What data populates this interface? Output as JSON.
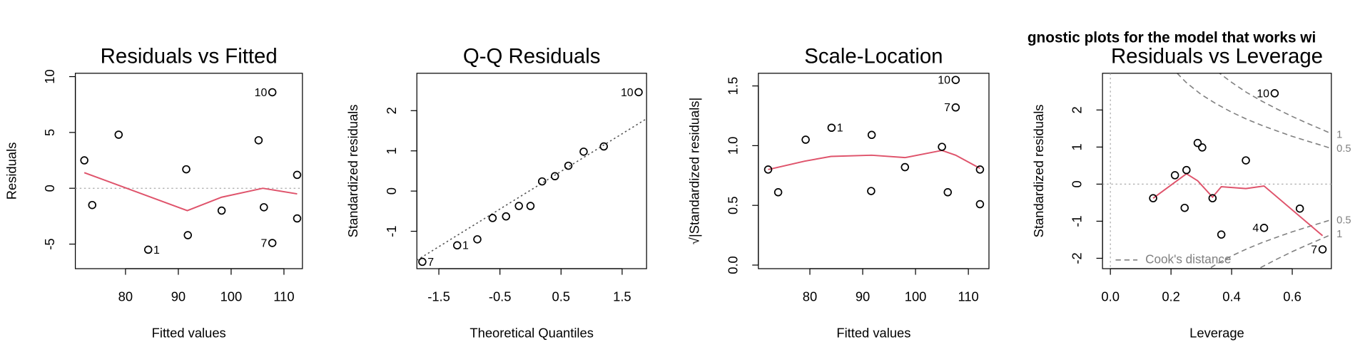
{
  "title": "gnostic plots for the model that works wi",
  "chart_data": [
    {
      "type": "scatter",
      "title": "Residuals vs Fitted",
      "xlabel": "Fitted values",
      "ylabel": "Residuals",
      "xlim": [
        70.5,
        113.5
      ],
      "ylim": [
        -7.2,
        10.3
      ],
      "xticks": [
        80,
        90,
        100,
        110
      ],
      "yticks": [
        -5,
        0,
        5,
        10
      ],
      "x": [
        72.2,
        73.7,
        78.7,
        84.3,
        91.5,
        91.8,
        98.2,
        105.2,
        106.2,
        107.8,
        107.8,
        112.5,
        112.5
      ],
      "values": [
        2.5,
        -1.5,
        4.8,
        -5.5,
        1.7,
        -4.2,
        -2.0,
        4.3,
        -1.7,
        8.6,
        -4.9,
        1.2,
        -2.7
      ],
      "point_labels": [
        null,
        null,
        null,
        "1",
        null,
        null,
        null,
        null,
        null,
        "10",
        "7",
        null,
        null
      ],
      "smooth": {
        "color": "#DF536B",
        "x": [
          72.2,
          91.7,
          98.2,
          106,
          112.5
        ],
        "values": [
          1.4,
          -2.0,
          -0.8,
          0,
          -0.5
        ]
      },
      "hline": 0
    },
    {
      "type": "scatter",
      "title": "Q-Q Residuals",
      "xlabel": "Theoretical Quantiles",
      "ylabel": "Standardized residuals",
      "xlim": [
        -1.86,
        1.9
      ],
      "ylim": [
        -1.93,
        2.93
      ],
      "xticks": [
        -1.5,
        -0.5,
        0.5,
        1.5
      ],
      "yticks": [
        -1,
        0,
        1,
        2
      ],
      "x": [
        -1.77,
        -1.2,
        -0.87,
        -0.62,
        -0.4,
        -0.19,
        0,
        0.19,
        0.4,
        0.62,
        0.87,
        1.2,
        1.77
      ],
      "values": [
        -1.76,
        -1.35,
        -1.2,
        -0.67,
        -0.63,
        -0.37,
        -0.37,
        0.24,
        0.37,
        0.63,
        0.98,
        1.11,
        2.46
      ],
      "point_labels": [
        "7",
        "1",
        null,
        null,
        null,
        null,
        null,
        null,
        null,
        null,
        null,
        null,
        "10"
      ],
      "ref_line": {
        "x": [
          -1.86,
          1.9
        ],
        "values": [
          -1.72,
          1.8
        ]
      }
    },
    {
      "type": "scatter",
      "title": "Scale-Location",
      "xlabel": "Fitted values",
      "ylabel": "√|Standardized residuals|",
      "xlim": [
        70.25,
        113.9
      ],
      "ylim": [
        -0.03,
        1.606
      ],
      "xticks": [
        80,
        90,
        100,
        110
      ],
      "yticks": [
        {
          "value": 0,
          "label": "0.0"
        },
        0.5,
        {
          "value": 1,
          "label": "1.0"
        },
        1.5
      ],
      "x": [
        72.1,
        74.0,
        79.2,
        84.1,
        91.6,
        91.7,
        98.0,
        105.0,
        106.1,
        107.6,
        107.6,
        112.2,
        112.2
      ],
      "values": [
        0.8,
        0.61,
        1.05,
        1.15,
        0.62,
        1.09,
        0.82,
        0.99,
        0.61,
        1.55,
        1.32,
        0.8,
        0.51
      ],
      "point_labels": [
        null,
        null,
        null,
        "1",
        null,
        null,
        null,
        null,
        null,
        "10",
        "7",
        null,
        null
      ],
      "smooth": {
        "color": "#DF536B",
        "x": [
          72.1,
          79,
          84,
          91.7,
          98,
          105,
          107.6,
          112.2
        ],
        "values": [
          0.8,
          0.87,
          0.91,
          0.92,
          0.9,
          0.96,
          0.92,
          0.81
        ]
      }
    },
    {
      "type": "scatter",
      "title": "Residuals vs Leverage",
      "xlabel": "Leverage",
      "ylabel": "Standardized residuals",
      "xlim": [
        -0.026,
        0.729
      ],
      "ylim": [
        -2.28,
        2.99
      ],
      "xticks": [
        {
          "value": 0,
          "label": "0.0"
        },
        0.2,
        0.4,
        0.6
      ],
      "yticks": [
        -2,
        -1,
        0,
        1,
        2
      ],
      "x": [
        0.141,
        0.213,
        0.245,
        0.251,
        0.288,
        0.303,
        0.337,
        0.366,
        0.447,
        0.507,
        0.542,
        0.625,
        0.7
      ],
      "values": [
        -0.38,
        0.24,
        -0.64,
        0.38,
        1.11,
        0.99,
        -0.38,
        -1.36,
        0.64,
        -1.18,
        2.45,
        -0.66,
        -1.76
      ],
      "point_labels": [
        null,
        null,
        null,
        null,
        null,
        null,
        null,
        null,
        null,
        "4",
        "10",
        null,
        "7"
      ],
      "smooth": {
        "color": "#DF536B",
        "x": [
          0.141,
          0.251,
          0.288,
          0.337,
          0.366,
          0.447,
          0.507,
          0.7
        ],
        "values": [
          -0.38,
          0.28,
          0.09,
          -0.35,
          -0.07,
          -0.12,
          -0.05,
          -1.39
        ]
      },
      "hline": 0,
      "vline": 0,
      "legend": "Cook's distance",
      "contour_labels": [
        1,
        0.5,
        0.5,
        1
      ]
    }
  ]
}
